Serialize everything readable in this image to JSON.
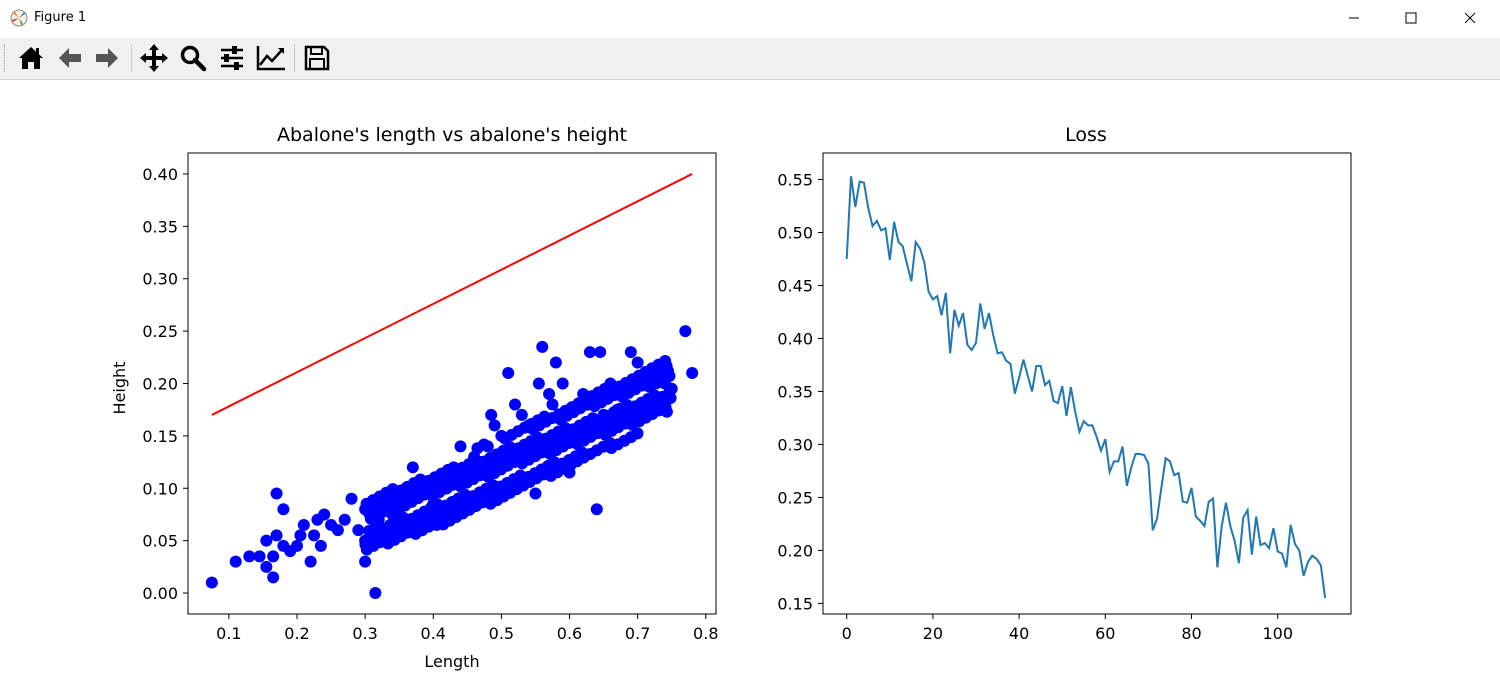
{
  "window": {
    "title": "Figure 1",
    "app_icon": "matplotlib-icon",
    "controls": [
      "minimize-icon",
      "maximize-icon",
      "close-icon"
    ]
  },
  "toolbar": {
    "buttons": [
      "home-icon",
      "back-arrow-icon",
      "forward-arrow-icon",
      "pan-icon",
      "zoom-icon",
      "subplots-config-icon",
      "edit-axis-icon",
      "save-icon"
    ]
  },
  "chart_data": [
    {
      "type": "scatter",
      "title": "Abalone's length vs abalone's height",
      "xlabel": "Length",
      "ylabel": "Height",
      "xlim": [
        0.04,
        0.815
      ],
      "ylim": [
        -0.02,
        0.42
      ],
      "xticks": [
        "0.1",
        "0.2",
        "0.3",
        "0.4",
        "0.5",
        "0.6",
        "0.7",
        "0.8"
      ],
      "yticks": [
        "0.00",
        "0.05",
        "0.10",
        "0.15",
        "0.20",
        "0.25",
        "0.30",
        "0.35",
        "0.40"
      ],
      "grid": false,
      "points_color": "#0000ff",
      "points": [
        [
          0.075,
          0.01
        ],
        [
          0.11,
          0.03
        ],
        [
          0.13,
          0.035
        ],
        [
          0.145,
          0.035
        ],
        [
          0.155,
          0.025
        ],
        [
          0.155,
          0.05
        ],
        [
          0.165,
          0.015
        ],
        [
          0.165,
          0.035
        ],
        [
          0.17,
          0.095
        ],
        [
          0.17,
          0.055
        ],
        [
          0.18,
          0.08
        ],
        [
          0.18,
          0.045
        ],
        [
          0.19,
          0.04
        ],
        [
          0.2,
          0.045
        ],
        [
          0.205,
          0.055
        ],
        [
          0.21,
          0.065
        ],
        [
          0.22,
          0.03
        ],
        [
          0.225,
          0.055
        ],
        [
          0.23,
          0.07
        ],
        [
          0.235,
          0.045
        ],
        [
          0.24,
          0.075
        ],
        [
          0.25,
          0.065
        ],
        [
          0.26,
          0.06
        ],
        [
          0.27,
          0.07
        ],
        [
          0.28,
          0.09
        ],
        [
          0.29,
          0.06
        ],
        [
          0.3,
          0.05
        ],
        [
          0.3,
          0.08
        ],
        [
          0.315,
          0.0
        ],
        [
          0.32,
          0.07
        ],
        [
          0.33,
          0.08
        ],
        [
          0.34,
          0.075
        ],
        [
          0.35,
          0.08
        ],
        [
          0.36,
          0.1
        ],
        [
          0.37,
          0.12
        ],
        [
          0.38,
          0.105
        ],
        [
          0.39,
          0.1
        ],
        [
          0.4,
          0.085
        ],
        [
          0.405,
          0.065
        ],
        [
          0.41,
          0.11
        ],
        [
          0.42,
          0.1
        ],
        [
          0.43,
          0.12
        ],
        [
          0.44,
          0.14
        ],
        [
          0.45,
          0.115
        ],
        [
          0.455,
          0.09
        ],
        [
          0.46,
          0.13
        ],
        [
          0.47,
          0.125
        ],
        [
          0.48,
          0.14
        ],
        [
          0.485,
          0.17
        ],
        [
          0.49,
          0.16
        ],
        [
          0.5,
          0.15
        ],
        [
          0.51,
          0.21
        ],
        [
          0.52,
          0.18
        ],
        [
          0.53,
          0.17
        ],
        [
          0.54,
          0.16
        ],
        [
          0.55,
          0.095
        ],
        [
          0.555,
          0.2
        ],
        [
          0.56,
          0.235
        ],
        [
          0.57,
          0.19
        ],
        [
          0.575,
          0.18
        ],
        [
          0.58,
          0.22
        ],
        [
          0.59,
          0.2
        ],
        [
          0.6,
          0.115
        ],
        [
          0.61,
          0.13
        ],
        [
          0.62,
          0.19
        ],
        [
          0.63,
          0.23
        ],
        [
          0.64,
          0.08
        ],
        [
          0.645,
          0.23
        ],
        [
          0.65,
          0.17
        ],
        [
          0.66,
          0.2
        ],
        [
          0.67,
          0.175
        ],
        [
          0.68,
          0.19
        ],
        [
          0.69,
          0.23
        ],
        [
          0.7,
          0.22
        ],
        [
          0.71,
          0.17
        ],
        [
          0.72,
          0.2
        ],
        [
          0.73,
          0.21
        ],
        [
          0.74,
          0.2
        ],
        [
          0.75,
          0.195
        ],
        [
          0.77,
          0.25
        ],
        [
          0.78,
          0.21
        ]
      ],
      "fit_line": {
        "color": "#ff0000",
        "x": [
          0.075,
          0.78
        ],
        "y": [
          0.17,
          0.4
        ]
      }
    },
    {
      "type": "line",
      "title": "Loss",
      "xlim": [
        -5.5,
        117
      ],
      "ylim": [
        0.14,
        0.575
      ],
      "xticks": [
        "0",
        "20",
        "40",
        "60",
        "80",
        "100"
      ],
      "yticks": [
        "0.15",
        "0.20",
        "0.25",
        "0.30",
        "0.35",
        "0.40",
        "0.45",
        "0.50",
        "0.55"
      ],
      "grid": false,
      "line_color": "#1f77b4",
      "x_start": 0,
      "values": [
        0.475,
        0.553,
        0.524,
        0.548,
        0.547,
        0.523,
        0.506,
        0.511,
        0.502,
        0.504,
        0.474,
        0.51,
        0.491,
        0.487,
        0.47,
        0.454,
        0.491,
        0.485,
        0.472,
        0.444,
        0.437,
        0.44,
        0.422,
        0.443,
        0.386,
        0.427,
        0.412,
        0.424,
        0.394,
        0.389,
        0.396,
        0.433,
        0.409,
        0.424,
        0.403,
        0.386,
        0.387,
        0.379,
        0.376,
        0.348,
        0.363,
        0.38,
        0.365,
        0.35,
        0.374,
        0.374,
        0.356,
        0.36,
        0.341,
        0.339,
        0.355,
        0.327,
        0.354,
        0.331,
        0.312,
        0.322,
        0.318,
        0.318,
        0.307,
        0.294,
        0.305,
        0.274,
        0.284,
        0.284,
        0.298,
        0.261,
        0.278,
        0.291,
        0.291,
        0.29,
        0.282,
        0.219,
        0.23,
        0.259,
        0.287,
        0.284,
        0.271,
        0.273,
        0.246,
        0.245,
        0.259,
        0.232,
        0.228,
        0.223,
        0.246,
        0.249,
        0.184,
        0.223,
        0.245,
        0.223,
        0.209,
        0.188,
        0.231,
        0.238,
        0.196,
        0.232,
        0.205,
        0.207,
        0.202,
        0.221,
        0.199,
        0.197,
        0.184,
        0.224,
        0.206,
        0.2,
        0.176,
        0.189,
        0.195,
        0.192,
        0.186,
        0.155
      ]
    }
  ]
}
